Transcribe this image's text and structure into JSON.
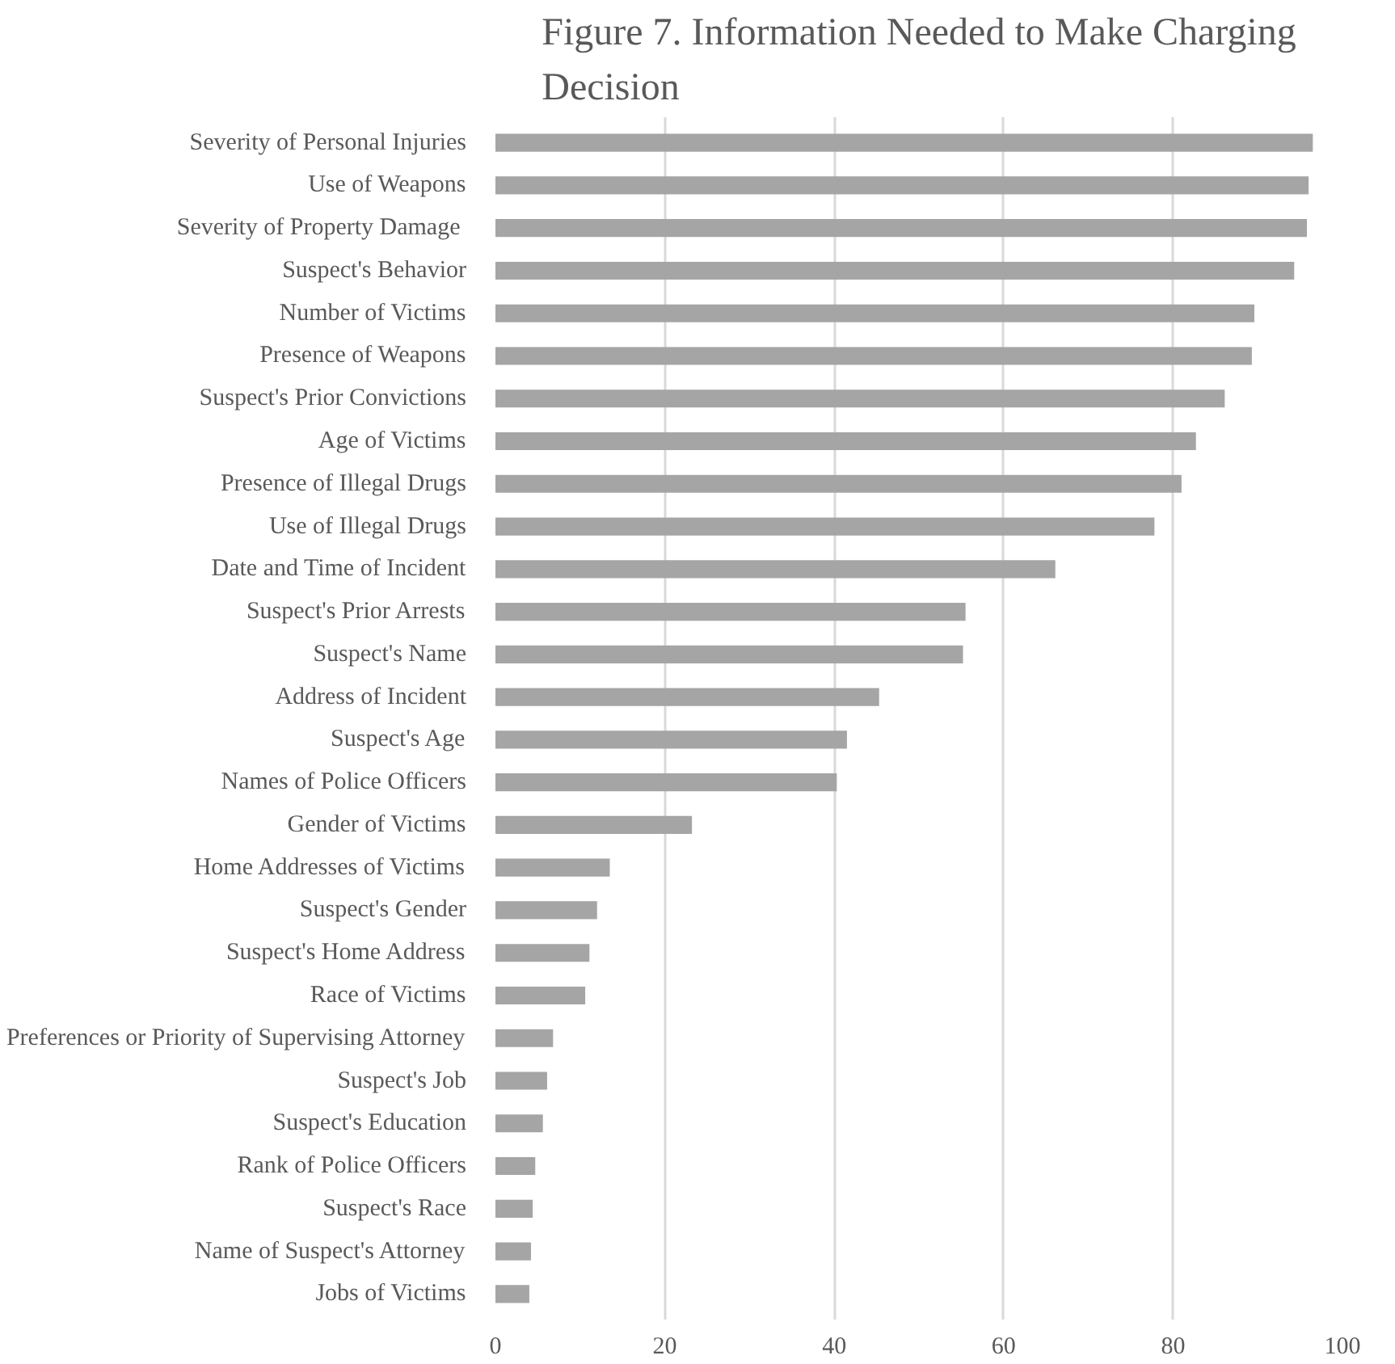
{
  "chart_data": {
    "type": "bar",
    "orientation": "horizontal",
    "title": "Figure 7. Information Needed to Make Charging Decision",
    "categories": [
      "Severity of Personal Injuries",
      "Use of Weapons",
      "Severity  of Property Damage",
      "Suspect's Behavior",
      "Number of Victims",
      "Presence of Weapons",
      "Suspect's Prior Convictions",
      "Age of Victims",
      "Presence of Illegal Drugs",
      "Use of Illegal Drugs",
      "Date and Time of Incident",
      "Suspect's Prior Arrests",
      "Suspect's Name",
      "Address of Incident",
      "Suspect's Age",
      "Names of Police Officers",
      "Gender of Victims",
      "Home Addresses of Victims",
      "Suspect's Gender",
      "Suspect's Home Address",
      "Race of Victims",
      "Preferences or Priority of Supervising Attorney",
      "Suspect's Job",
      "Suspect's Education",
      "Rank of Police Officers",
      "Suspect's Race",
      "Name of Suspect's Attorney",
      "Jobs of Victims"
    ],
    "values": [
      96.5,
      96.0,
      95.8,
      94.3,
      89.6,
      89.3,
      86.1,
      82.7,
      81.0,
      77.8,
      66.1,
      55.5,
      55.2,
      45.3,
      41.5,
      40.3,
      23.2,
      13.5,
      12.0,
      11.1,
      10.6,
      6.8,
      6.1,
      5.6,
      4.7,
      4.4,
      4.2,
      4.0
    ],
    "color": "#a5a5a5",
    "xlim": [
      0,
      100
    ],
    "xticks": [
      0,
      20,
      40,
      60,
      80,
      100
    ],
    "grid": "x"
  }
}
